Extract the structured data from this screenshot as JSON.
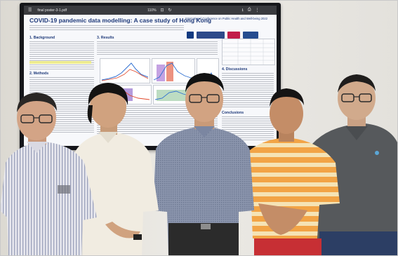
{
  "photo": {
    "viewer": {
      "file_name": "final poster-3-1.pdf",
      "zoom": "110%"
    },
    "poster": {
      "title": "COVID-19 pandemic data modelling: A case study of Hong Kong",
      "conference": "International Conference on Public Health and Well-being 2022",
      "sections": [
        "1. Background",
        "2. Methods",
        "3. Results",
        "4. Discussions",
        "Conclusions"
      ]
    },
    "colors": {
      "poster_blue": "#1f3a7a",
      "screen_bezel": "#15161a",
      "wall": "#e6e4df"
    }
  }
}
